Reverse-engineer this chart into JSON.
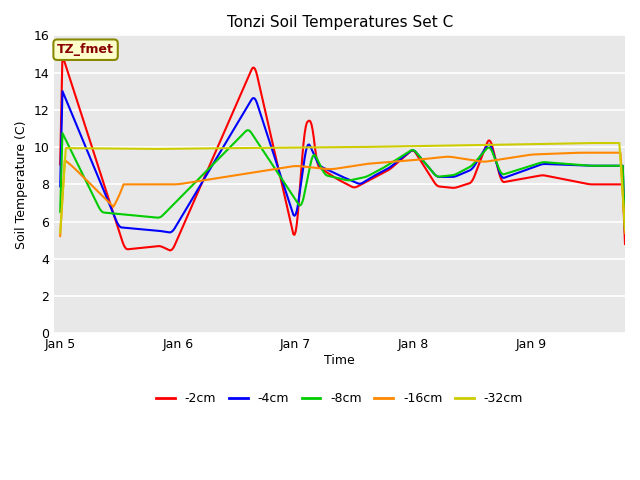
{
  "title": "Tonzi Soil Temperatures Set C",
  "xlabel": "Time",
  "ylabel": "Soil Temperature (C)",
  "annotation": "TZ_fmet",
  "ylim": [
    0,
    16
  ],
  "yticks": [
    0,
    2,
    4,
    6,
    8,
    10,
    12,
    14,
    16
  ],
  "bg_color": "#e8e8e8",
  "fig_color": "#ffffff",
  "series_colors": {
    "-2cm": "#ff0000",
    "-4cm": "#0000ff",
    "-8cm": "#00cc00",
    "-16cm": "#ff8800",
    "-32cm": "#cccc00"
  },
  "legend_labels": [
    "-2cm",
    "-4cm",
    "-8cm",
    "-16cm",
    "-32cm"
  ],
  "x_tick_labels": [
    "Jan 5",
    "Jan 6",
    "Jan 7",
    "Jan 8",
    "Jan 9"
  ],
  "x_tick_pos": [
    0,
    1,
    2,
    3,
    4
  ],
  "xlim": [
    -0.05,
    4.8
  ]
}
